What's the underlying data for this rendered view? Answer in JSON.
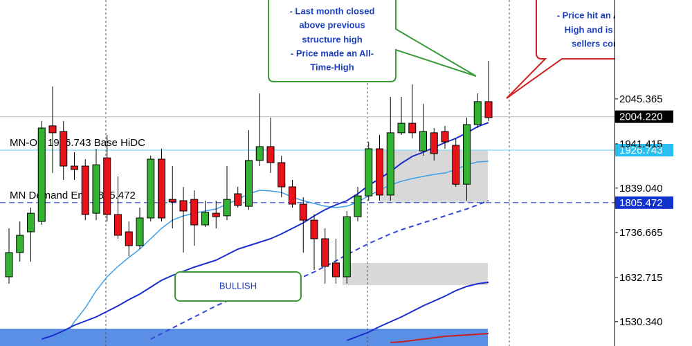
{
  "chart_data": {
    "type": "candlestick",
    "up_color": "#33b233",
    "down_color": "#e8141b",
    "ylim": [
      1474,
      2274
    ],
    "yticks": [
      2045.365,
      1941.415,
      {
        "value": 1839.04,
        "label": "1839.040"
      },
      1736.665,
      1632.715,
      {
        "value": 1530.34,
        "label": "1530.340"
      }
    ],
    "open": [
      1634,
      1690,
      1738,
      1762,
      1983,
      1970,
      1890,
      1890,
      1781,
      1909,
      1778,
      1738,
      1706,
      1770,
      1906,
      1813,
      1810,
      1813,
      1754,
      1781,
      1775,
      1826,
      1797,
      1903,
      1935,
      1898,
      1842,
      1802,
      1765,
      1722,
      1666,
      1634,
      1773,
      1821,
      1930,
      1823,
      1967,
      1989,
      1925,
      1967,
      1970,
      1938,
      1848,
      1986,
      2039
    ],
    "high": [
      1746,
      1762,
      1794,
      1994,
      2074,
      1994,
      1922,
      1906,
      1930,
      1962,
      1866,
      1762,
      1794,
      1914,
      1930,
      1890,
      1842,
      1834,
      1810,
      1810,
      1890,
      1842,
      1973,
      2058,
      2002,
      1914,
      1858,
      1818,
      1778,
      1746,
      1722,
      1786,
      1842,
      1946,
      1962,
      2050,
      2050,
      2079,
      2034,
      1978,
      1983,
      1954,
      2002,
      2058,
      2133
    ],
    "low": [
      1618,
      1669,
      1669,
      1754,
      1874,
      1858,
      1858,
      1765,
      1765,
      1762,
      1722,
      1682,
      1698,
      1762,
      1762,
      1746,
      1690,
      1706,
      1749,
      1746,
      1765,
      1794,
      1789,
      1890,
      1874,
      1818,
      1794,
      1690,
      1650,
      1618,
      1618,
      1618,
      1762,
      1810,
      1810,
      1810,
      1962,
      1954,
      1914,
      1903,
      1930,
      1842,
      1810,
      1978,
      1994
    ],
    "close": [
      1690,
      1730,
      1781,
      1978,
      1967,
      1890,
      1882,
      1778,
      1893,
      1778,
      1730,
      1706,
      1770,
      1906,
      1770,
      1807,
      1786,
      1754,
      1783,
      1773,
      1813,
      1799,
      1903,
      1935,
      1898,
      1842,
      1802,
      1765,
      1722,
      1658,
      1634,
      1773,
      1821,
      1930,
      1823,
      1967,
      1989,
      1967,
      1970,
      1919,
      1946,
      1848,
      1986,
      2039,
      2002
    ],
    "overlays": [
      {
        "color": "#3ea0e8",
        "dashed": false,
        "values": [
          null,
          null,
          null,
          null,
          null,
          1493.2,
          1530,
          1562,
          1602,
          1634,
          1658,
          1678.8,
          1698,
          1722,
          1746,
          1765.2,
          1774.8,
          1781.2,
          1786,
          1790.8,
          1802,
          1813.2,
          1826,
          1834,
          1832.4,
          1829.2,
          1818,
          1810,
          1803.6,
          1797.2,
          1794,
          1797.2,
          1806.8,
          1821.2,
          1834,
          1846.8,
          1854.8,
          1861.2,
          1866,
          1870.8,
          1874,
          1882,
          1893.2,
          1899.6,
          1901.2
        ]
      },
      {
        "color": "#1a2bd0",
        "dashed": false,
        "values": [
          null,
          null,
          null,
          1490,
          1498,
          1509.2,
          1522,
          1531.6,
          1541.2,
          1554,
          1566.8,
          1581.2,
          1594,
          1610,
          1626,
          1637.2,
          1646.8,
          1656.4,
          1664.4,
          1672.4,
          1685.2,
          1698,
          1706,
          1714,
          1722,
          1733.2,
          1746,
          1758.8,
          1774.8,
          1789.2,
          1800.4,
          1810,
          1826,
          1845.2,
          1861.2,
          1877.2,
          1896.4,
          1912.4,
          1922,
          1933.2,
          1944.4,
          1954,
          1966.8,
          1981.2,
          1990.6
        ]
      },
      {
        "color": "#3348d8",
        "dashed": true,
        "values": [
          null,
          null,
          null,
          null,
          null,
          null,
          null,
          null,
          null,
          null,
          null,
          null,
          null,
          1490,
          1502.8,
          1515.6,
          1528.4,
          1541.2,
          1554,
          1566.8,
          1578,
          1589.2,
          1598.8,
          1606.8,
          1614.8,
          1621.2,
          1627.6,
          1634,
          1645.2,
          1658,
          1670.8,
          1685.2,
          1698,
          1710.8,
          1722,
          1733.2,
          1742.8,
          1750.8,
          1758.8,
          1766.8,
          1774.8,
          1782.8,
          1790.8,
          1800.4,
          1810
        ]
      },
      {
        "color": "#1a2bd0",
        "dashed": false,
        "values": [
          null,
          null,
          null,
          null,
          null,
          null,
          null,
          null,
          null,
          null,
          null,
          null,
          null,
          null,
          null,
          null,
          null,
          null,
          null,
          null,
          null,
          null,
          null,
          null,
          null,
          null,
          null,
          null,
          null,
          null,
          null,
          1486.8,
          1496.4,
          1506,
          1518.8,
          1530,
          1541.2,
          1554,
          1566.8,
          1578,
          1589.2,
          1602,
          1611.6,
          1618,
          1621.2
        ]
      },
      {
        "color": "#c82020",
        "dashed": false,
        "values": [
          null,
          null,
          null,
          null,
          null,
          null,
          null,
          null,
          null,
          null,
          null,
          null,
          null,
          null,
          null,
          null,
          null,
          null,
          null,
          null,
          null,
          null,
          null,
          null,
          null,
          null,
          null,
          null,
          null,
          null,
          null,
          null,
          null,
          null,
          null,
          1482,
          1483.6,
          1486.8,
          1490,
          1493.2,
          1496.4,
          1498,
          1499.6,
          1501.2,
          1502.8
        ]
      }
    ],
    "zones": [
      {
        "high": 1926.743,
        "low": 1805.472,
        "color": "#d8d8d8"
      },
      {
        "high": 1666,
        "low": 1614.8,
        "color": "#d8d8d8"
      },
      {
        "high": 1514,
        "low": 1474,
        "color": "#5b8fe6"
      }
    ],
    "levels": [
      {
        "value": 2004.22,
        "label": "2004.220",
        "line_color": "#c8c8c8",
        "box_color": "#000000",
        "dashed": false
      },
      {
        "value": 1926.743,
        "line_color": "#7fd8ee",
        "box_color": "#29bff0",
        "dashed": false
      },
      {
        "value": 1805.472,
        "line_color": "#2a3fd8",
        "box_color": "#1133cc",
        "dashed": true
      }
    ],
    "level_notes": [
      "MN-OD 1926.743 Base HiDC",
      "MN Demand End 1805.472"
    ],
    "annotations": {
      "green_callout": [
        "- Last month closed",
        "above previous",
        "structure high",
        "- Price made an All-",
        "Time-High"
      ],
      "red_callout": [
        "- Price hit an All-Time-",
        "High and is seeing",
        "sellers come in"
      ],
      "bullish": "BULLISH"
    }
  }
}
